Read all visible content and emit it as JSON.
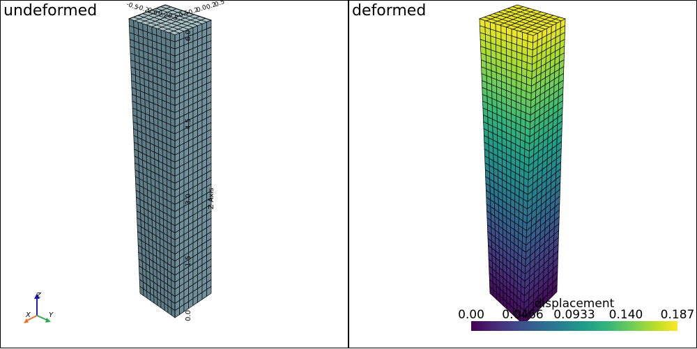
{
  "viewports": {
    "left": {
      "title": "undeformed"
    },
    "right": {
      "title": "deformed"
    }
  },
  "axes": {
    "z_title": "Z Axis",
    "z_ticks": [
      "0.0",
      "1.5",
      "3.0",
      "4.5",
      "6.0"
    ],
    "top_ticks": [
      "-0.5",
      "-0.2",
      "0.0",
      "0.2",
      "0.5",
      "-0.5",
      "-0.2",
      "0.0",
      "0.2",
      "0.5"
    ]
  },
  "orientation_widget": {
    "x": "X",
    "y": "Y",
    "z": "Z"
  },
  "scalar_bar": {
    "title": "displacement",
    "ticks": [
      "0.00",
      "0.0466",
      "0.0933",
      "0.140",
      "0.187"
    ],
    "min": 0.0,
    "max": 0.187,
    "colormap": "viridis"
  },
  "colors": {
    "mesh_face": "#5e7d88",
    "mesh_face_light": "#6f8f9a",
    "mesh_top": "#a8c2c6",
    "edge": "#000000"
  }
}
